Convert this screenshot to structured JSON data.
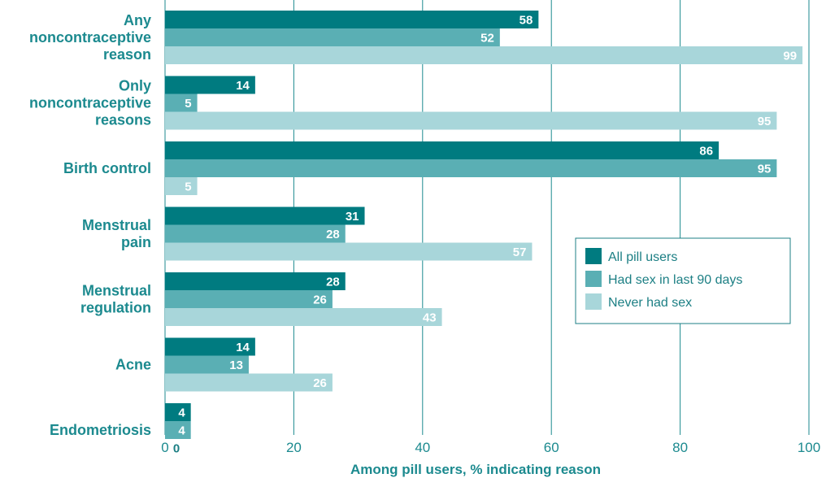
{
  "chart_data": {
    "type": "bar",
    "orientation": "horizontal",
    "categories": [
      [
        "Any",
        "noncontraceptive",
        "reason"
      ],
      [
        "Only",
        "noncontraceptive",
        "reasons"
      ],
      [
        "Birth control"
      ],
      [
        "Menstrual",
        "pain"
      ],
      [
        "Menstrual",
        "regulation"
      ],
      [
        "Acne"
      ],
      [
        "Endometriosis"
      ]
    ],
    "series": [
      {
        "name": "All pill users",
        "color": "#007b80",
        "values": [
          58,
          14,
          86,
          31,
          28,
          14,
          4
        ]
      },
      {
        "name": "Had sex in last 90 days",
        "color": "#5aafb4",
        "values": [
          52,
          5,
          95,
          28,
          26,
          13,
          4
        ]
      },
      {
        "name": "Never had sex",
        "color": "#a8d6da",
        "values": [
          99,
          95,
          5,
          57,
          43,
          26,
          0
        ]
      }
    ],
    "xlabel": "Among pill users, % indicating reason",
    "xlim": [
      0,
      100
    ],
    "xticks": [
      0,
      20,
      40,
      60,
      80,
      100
    ],
    "grid": true,
    "legend_position": "center-right"
  }
}
